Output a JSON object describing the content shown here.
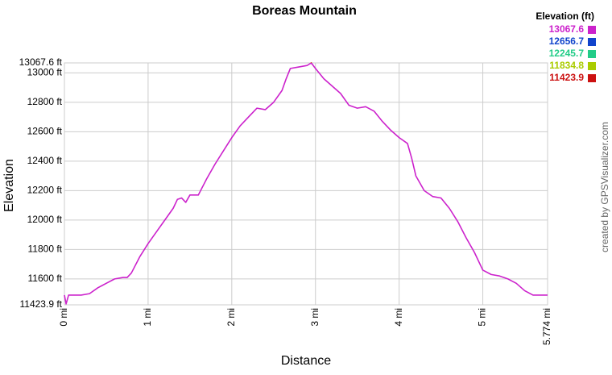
{
  "chart_data": {
    "type": "line",
    "title": "Boreas Mountain",
    "x_label": "Distance",
    "y_label": "Elevation",
    "credit": "created by GPSVisualizer.com",
    "x": [
      0,
      0.02,
      0.05,
      0.2,
      0.3,
      0.4,
      0.5,
      0.6,
      0.7,
      0.75,
      0.8,
      0.9,
      1.0,
      1.1,
      1.2,
      1.3,
      1.35,
      1.4,
      1.45,
      1.5,
      1.6,
      1.7,
      1.8,
      1.9,
      2.0,
      2.1,
      2.2,
      2.3,
      2.4,
      2.5,
      2.6,
      2.65,
      2.7,
      2.8,
      2.9,
      2.95,
      3.0,
      3.1,
      3.2,
      3.3,
      3.4,
      3.5,
      3.6,
      3.7,
      3.8,
      3.9,
      4.0,
      4.1,
      4.15,
      4.2,
      4.3,
      4.4,
      4.5,
      4.6,
      4.7,
      4.8,
      4.9,
      5.0,
      5.1,
      5.2,
      5.3,
      5.4,
      5.5,
      5.6,
      5.774
    ],
    "values": [
      11490,
      11430,
      11490,
      11490,
      11500,
      11540,
      11570,
      11600,
      11610,
      11610,
      11640,
      11750,
      11840,
      11920,
      12000,
      12080,
      12140,
      12150,
      12120,
      12170,
      12170,
      12280,
      12380,
      12470,
      12560,
      12640,
      12700,
      12760,
      12750,
      12800,
      12880,
      12960,
      13030,
      13040,
      13050,
      13067.6,
      13030,
      12960,
      12910,
      12860,
      12780,
      12760,
      12770,
      12740,
      12670,
      12610,
      12560,
      12520,
      12420,
      12300,
      12200,
      12160,
      12150,
      12080,
      11990,
      11880,
      11780,
      11660,
      11630,
      11620,
      11600,
      11570,
      11520,
      11490,
      11490
    ],
    "xlim": [
      0,
      5.774
    ],
    "ylim": [
      11423.9,
      13067.6
    ],
    "xticks": [
      {
        "value": 0,
        "label": "0 mi"
      },
      {
        "value": 1,
        "label": "1 mi"
      },
      {
        "value": 2,
        "label": "2 mi"
      },
      {
        "value": 3,
        "label": "3 mi"
      },
      {
        "value": 4,
        "label": "4 mi"
      },
      {
        "value": 5,
        "label": "5 mi"
      },
      {
        "value": 5.774,
        "label": "5.774 mi"
      }
    ],
    "yticks": [
      {
        "value": 11423.9,
        "label": "11423.9 ft"
      },
      {
        "value": 11600,
        "label": "11600 ft"
      },
      {
        "value": 11800,
        "label": "11800 ft"
      },
      {
        "value": 12000,
        "label": "12000 ft"
      },
      {
        "value": 12200,
        "label": "12200 ft"
      },
      {
        "value": 12400,
        "label": "12400 ft"
      },
      {
        "value": 12600,
        "label": "12600 ft"
      },
      {
        "value": 12800,
        "label": "12800 ft"
      },
      {
        "value": 13000,
        "label": "13000 ft"
      },
      {
        "value": 13067.6,
        "label": "13067.6 ft"
      }
    ],
    "grid": true,
    "legend": {
      "title": "Elevation (ft)",
      "values": [
        13067.6,
        12656.7,
        12245.7,
        11834.8,
        11423.9
      ],
      "colors": [
        "#cc22cc",
        "#1144cc",
        "#22cc88",
        "#aacc00",
        "#cc1111"
      ]
    }
  }
}
